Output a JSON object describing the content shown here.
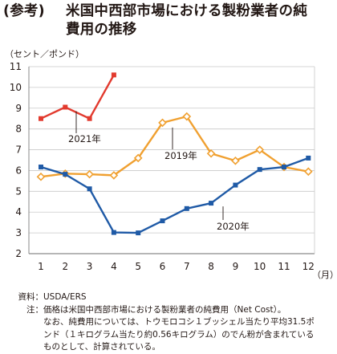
{
  "title": {
    "tag": "(参考)",
    "line1": "米国中西部市場における製粉業者の純",
    "line2": "費用の推移"
  },
  "unit_label": "（セント／ポンド）",
  "chart_data": {
    "type": "line",
    "x": [
      1,
      2,
      3,
      4,
      5,
      6,
      7,
      8,
      9,
      10,
      11,
      12
    ],
    "x_tick_labels": [
      "1",
      "2",
      "3",
      "4",
      "5",
      "6",
      "7",
      "8",
      "9",
      "10",
      "11",
      "12"
    ],
    "x_unit": "（月）",
    "ylim": [
      2,
      11
    ],
    "y_ticks": [
      2,
      3,
      4,
      5,
      6,
      7,
      8,
      9,
      10,
      11
    ],
    "grid": "horizontal",
    "series": [
      {
        "name": "2021年",
        "color": "#e23a2e",
        "marker": "square",
        "values": [
          8.5,
          9.05,
          8.5,
          10.6,
          null,
          null,
          null,
          null,
          null,
          null,
          null,
          null
        ]
      },
      {
        "name": "2019年",
        "color": "#f0a030",
        "marker": "diamond",
        "values": [
          5.7,
          5.85,
          5.82,
          5.77,
          6.6,
          8.3,
          8.6,
          6.82,
          6.47,
          7.0,
          6.17,
          5.95
        ]
      },
      {
        "name": "2020年",
        "color": "#1f5aa6",
        "marker": "square",
        "values": [
          6.17,
          5.82,
          5.12,
          3.02,
          3.0,
          3.58,
          4.17,
          4.43,
          5.3,
          6.05,
          6.17,
          6.6
        ]
      }
    ]
  },
  "notes": {
    "source_label": "資料：",
    "source_text": "USDA/ERS",
    "note_label": "注：",
    "note_line1": "価格は米国中西部市場における製粉業者の純費用（Net Cost）。",
    "note_line2": "なお、純費用については、トウモロコシ１ブッシェル当たり平均31.5ポ",
    "note_line3": "ンド（１キログラム当たり約0.56キログラム）のでん粉が含まれている",
    "note_line4": "ものとして、計算されている。"
  }
}
